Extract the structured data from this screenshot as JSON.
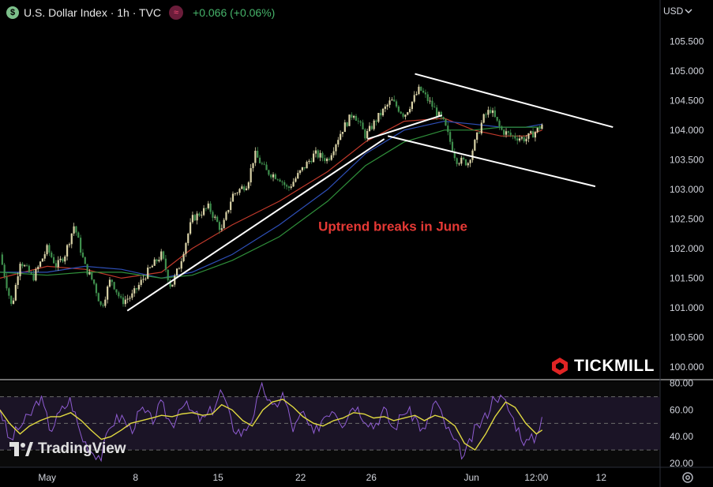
{
  "header": {
    "symbol_badge": "$",
    "title": "U.S. Dollar Index · 1h · TVC",
    "change": "+0.066 (+0.06%)",
    "indicator_badge": "≈",
    "currency": "USD"
  },
  "branding": {
    "tradingview": "TradingView",
    "tickmill": "TICKMILL"
  },
  "colors": {
    "up": "#d9d2a6",
    "down": "#3f8f4d",
    "ema_red": "#c0392b",
    "ema_blue": "#2e4fb8",
    "ema_green": "#2f8f3a",
    "rsi": "#8e5cd1",
    "rsi_ma": "#e0d940",
    "annotation": "#e53935",
    "trendline": "#ffffff"
  },
  "chart_data": [
    {
      "type": "line",
      "name": "price",
      "y_ticks": [
        "105.500",
        "105.000",
        "104.500",
        "104.000",
        "103.500",
        "103.000",
        "102.500",
        "102.000",
        "101.500",
        "101.000",
        "100.500",
        "100.000"
      ],
      "y_tick_values": [
        105.5,
        105.0,
        104.5,
        104.0,
        103.5,
        103.0,
        102.5,
        102.0,
        101.5,
        101.0,
        100.5,
        100.0
      ],
      "ylim": [
        99.8,
        105.85
      ],
      "x_ticks": [
        "May",
        "8",
        "15",
        "22",
        "26",
        "Jun",
        "12:00",
        "12"
      ],
      "x_tick_pos": [
        0.0,
        7.5,
        14.5,
        21.5,
        27.5,
        36.0,
        41.5,
        47.0
      ],
      "xlim": [
        -4.0,
        52.0
      ],
      "series": [
        {
          "name": "price",
          "x": [
            -4.0,
            -3.0,
            -2.3,
            -1.2,
            0.0,
            0.8,
            1.5,
            2.3,
            3.2,
            4.0,
            4.6,
            5.4,
            6.3,
            7.2,
            8.5,
            9.7,
            10.5,
            11.2,
            12.3,
            13.7,
            14.8,
            15.7,
            17.0,
            17.6,
            18.6,
            19.7,
            20.4,
            21.5,
            22.7,
            23.8,
            25.0,
            26.0,
            27.0,
            28.0,
            29.2,
            30.3,
            31.6,
            32.7,
            33.7,
            34.7,
            35.7,
            37.0,
            37.6,
            38.5,
            39.4,
            40.6,
            41.6,
            42.0
          ],
          "values": [
            101.9,
            101.0,
            101.8,
            101.5,
            102.0,
            101.7,
            101.9,
            102.4,
            101.7,
            101.4,
            101.0,
            101.5,
            101.1,
            101.2,
            101.6,
            101.9,
            101.35,
            101.7,
            102.5,
            102.7,
            102.3,
            102.9,
            103.1,
            103.6,
            103.3,
            103.2,
            103.0,
            103.3,
            103.6,
            103.5,
            104.0,
            104.3,
            103.9,
            104.2,
            104.5,
            104.25,
            104.7,
            104.4,
            104.1,
            103.5,
            103.45,
            104.2,
            104.35,
            104.0,
            103.9,
            103.85,
            104.0,
            104.1
          ]
        }
      ],
      "emas": [
        {
          "name": "red",
          "x": [
            -4.0,
            0.0,
            3.2,
            6.3,
            9.7,
            12.3,
            15.7,
            19.7,
            23.8,
            27.0,
            30.3,
            33.7,
            36.2,
            38.5,
            40.6,
            42.0
          ],
          "values": [
            101.5,
            101.7,
            101.65,
            101.5,
            101.6,
            102.0,
            102.4,
            102.8,
            103.3,
            103.8,
            104.15,
            104.2,
            104.0,
            103.9,
            103.9,
            104.0
          ]
        },
        {
          "name": "blue",
          "x": [
            -4.0,
            0.0,
            3.2,
            6.3,
            9.7,
            12.3,
            15.7,
            19.7,
            23.8,
            27.0,
            30.3,
            33.7,
            36.2,
            38.5,
            40.6,
            42.0
          ],
          "values": [
            101.6,
            101.6,
            101.7,
            101.65,
            101.5,
            101.6,
            101.9,
            102.4,
            103.0,
            103.6,
            104.0,
            104.15,
            104.1,
            104.05,
            104.05,
            104.1
          ]
        },
        {
          "name": "green",
          "x": [
            -4.0,
            0.0,
            3.2,
            6.3,
            9.7,
            12.3,
            15.7,
            19.7,
            23.8,
            27.0,
            30.3,
            33.7,
            36.2,
            38.5,
            40.6,
            42.0
          ],
          "values": [
            101.6,
            101.55,
            101.6,
            101.6,
            101.5,
            101.55,
            101.8,
            102.2,
            102.8,
            103.4,
            103.8,
            104.0,
            104.0,
            104.05,
            104.05,
            104.05
          ]
        }
      ],
      "trendlines": [
        {
          "x1": 6.8,
          "y1": 100.95,
          "x2": 28.6,
          "y2": 103.85
        },
        {
          "x1": 27.2,
          "y1": 103.85,
          "x2": 33.5,
          "y2": 104.25
        },
        {
          "x1": 31.2,
          "y1": 104.95,
          "x2": 48.0,
          "y2": 104.05
        },
        {
          "x1": 28.9,
          "y1": 103.9,
          "x2": 46.5,
          "y2": 103.05
        }
      ],
      "annotations": [
        {
          "text": "Uptrend breaks in June",
          "x": 23.0,
          "y": 102.3
        }
      ]
    },
    {
      "type": "line",
      "name": "RSI",
      "y_ticks": [
        "80.00",
        "60.00",
        "40.00",
        "20.00"
      ],
      "y_tick_values": [
        80,
        60,
        40,
        20
      ],
      "ylim": [
        17,
        81
      ],
      "band": [
        30,
        70
      ],
      "x": [
        -4.0,
        -3.2,
        -2.3,
        -1.5,
        -0.6,
        0.3,
        1.1,
        2.0,
        2.9,
        3.7,
        4.6,
        5.4,
        6.3,
        7.1,
        8.0,
        8.9,
        9.7,
        10.6,
        11.4,
        12.3,
        13.2,
        14.0,
        14.8,
        15.7,
        16.6,
        17.4,
        18.3,
        19.1,
        20.0,
        20.9,
        21.7,
        22.6,
        23.4,
        24.3,
        25.1,
        26.0,
        26.9,
        27.7,
        28.6,
        29.4,
        30.3,
        31.2,
        32.0,
        32.9,
        33.7,
        34.6,
        35.4,
        36.3,
        37.2,
        38.0,
        38.9,
        39.7,
        40.6,
        41.5,
        42.0
      ],
      "series": [
        {
          "name": "RSI",
          "values": [
            62,
            36,
            48,
            55,
            70,
            45,
            58,
            68,
            40,
            30,
            25,
            50,
            55,
            45,
            60,
            52,
            64,
            48,
            66,
            58,
            52,
            60,
            75,
            48,
            42,
            55,
            78,
            60,
            72,
            45,
            58,
            40,
            55,
            62,
            50,
            65,
            55,
            48,
            60,
            45,
            60,
            55,
            42,
            68,
            50,
            35,
            25,
            45,
            55,
            72,
            65,
            50,
            35,
            40,
            58
          ]
        },
        {
          "name": "RSI MA",
          "values": [
            60,
            50,
            42,
            48,
            52,
            55,
            55,
            58,
            52,
            45,
            38,
            40,
            45,
            50,
            52,
            54,
            56,
            55,
            57,
            58,
            56,
            57,
            64,
            60,
            52,
            48,
            60,
            66,
            68,
            62,
            55,
            50,
            48,
            52,
            54,
            58,
            57,
            54,
            55,
            52,
            54,
            56,
            52,
            56,
            54,
            48,
            35,
            30,
            42,
            55,
            66,
            62,
            50,
            42,
            45
          ]
        }
      ]
    }
  ]
}
